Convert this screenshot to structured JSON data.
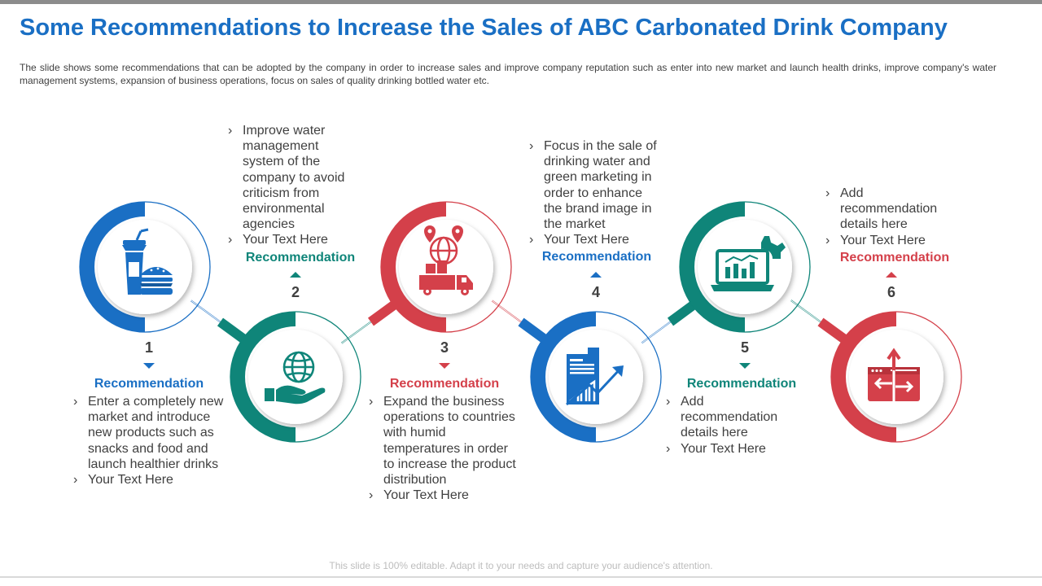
{
  "title": "Some Recommendations to Increase the Sales of ABC Carbonated Drink Company",
  "subtitle": "The slide shows some recommendations that can be adopted by the company in order to increase sales and improve  company reputation such as enter into new market and launch health drinks, improve company's water management  systems, expansion of business operations, focus on sales of quality drinking bottled water etc.",
  "footer": "This slide is 100% editable. Adapt it to your needs and capture your audience's attention.",
  "colors": {
    "blue": "#1a6fc4",
    "teal": "#0f8579",
    "red": "#d4404a",
    "title": "#1a6fc4"
  },
  "steps": [
    {
      "number": "1",
      "heading": "Recommendation",
      "color": "blue",
      "icon": "fast-food-icon",
      "bullets": [
        "Enter a completely new market and introduce new products such as snacks and food and launch healthier drinks",
        "Your Text Here"
      ]
    },
    {
      "number": "2",
      "heading": "Recommendation",
      "color": "teal",
      "icon": "globe-hand-icon",
      "bullets": [
        "Improve water management system of the company to avoid criticism from environmental agencies",
        "Your Text Here"
      ]
    },
    {
      "number": "3",
      "heading": "Recommendation",
      "color": "red",
      "icon": "global-delivery-icon",
      "bullets": [
        "Expand the business operations to countries with humid temperatures in order to increase the product distribution",
        "Your Text Here"
      ]
    },
    {
      "number": "4",
      "heading": "Recommendation",
      "color": "blue",
      "icon": "growth-chart-icon",
      "bullets": [
        "Focus in the sale of drinking water and green marketing in order to enhance the brand image in the market",
        "Your Text Here"
      ]
    },
    {
      "number": "5",
      "heading": "Recommendation",
      "color": "teal",
      "icon": "laptop-analytics-icon",
      "bullets": [
        "Add recommendation details here",
        "Your Text Here"
      ]
    },
    {
      "number": "6",
      "heading": "Recommendation",
      "color": "red",
      "icon": "direction-sign-icon",
      "bullets": [
        "Add recommendation details here",
        "Your Text Here"
      ]
    }
  ]
}
